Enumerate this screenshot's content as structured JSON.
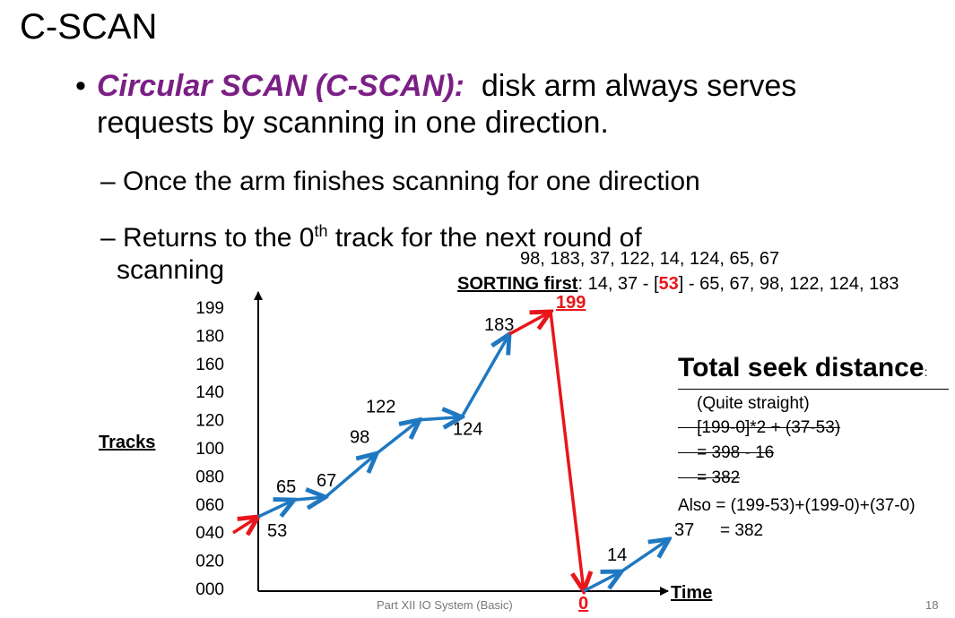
{
  "title": "C-SCAN",
  "bullet": {
    "term": "Circular SCAN (C-SCAN):",
    "line1_rest": "disk arm always serves",
    "line2": "requests by scanning in one direction."
  },
  "subbullets": {
    "s1": "Once the arm finishes scanning for one direction",
    "s2_pre": "Returns to the 0",
    "s2_sup": "th",
    "s2_post": " track for the next round of",
    "s2_line2": "scanning"
  },
  "request_queue": "98, 183, 37, 122, 14, 124, 65, 67",
  "sorting": {
    "label": "SORTING first",
    "pre": ": 14, 37 - [",
    "head": "53",
    "post": "] - 65, 67, 98, 122, 124, 183"
  },
  "chart_data": {
    "type": "line",
    "ylabel": "Tracks",
    "xlabel": "Time",
    "y_ticks": [
      "199",
      "180",
      "160",
      "140",
      "120",
      "100",
      "080",
      "060",
      "040",
      "020",
      "000"
    ],
    "start_track": 53,
    "service_order": [
      53,
      65,
      67,
      98,
      122,
      124,
      183,
      199,
      0,
      14,
      37
    ],
    "point_labels": [
      "53",
      "65",
      "67",
      "98",
      "122",
      "124",
      "183",
      "199",
      "0",
      "14",
      "37"
    ],
    "highlighted_labels": [
      "199",
      "0"
    ],
    "colors": {
      "normal": "#1f78c1",
      "jump": "#e8161b"
    }
  },
  "seek": {
    "heading": "Total seek distance",
    "colon": ":",
    "l1": "(Quite straight)",
    "l2": "[199-0]*2 + (37-53)",
    "l3": "= 398 - 16",
    "l4": "= 382",
    "l5": "Also = (199-53)+(199-0)+(37-0)",
    "l6": "= 382"
  },
  "footer": "Part XII IO System (Basic)",
  "page_number": "18"
}
